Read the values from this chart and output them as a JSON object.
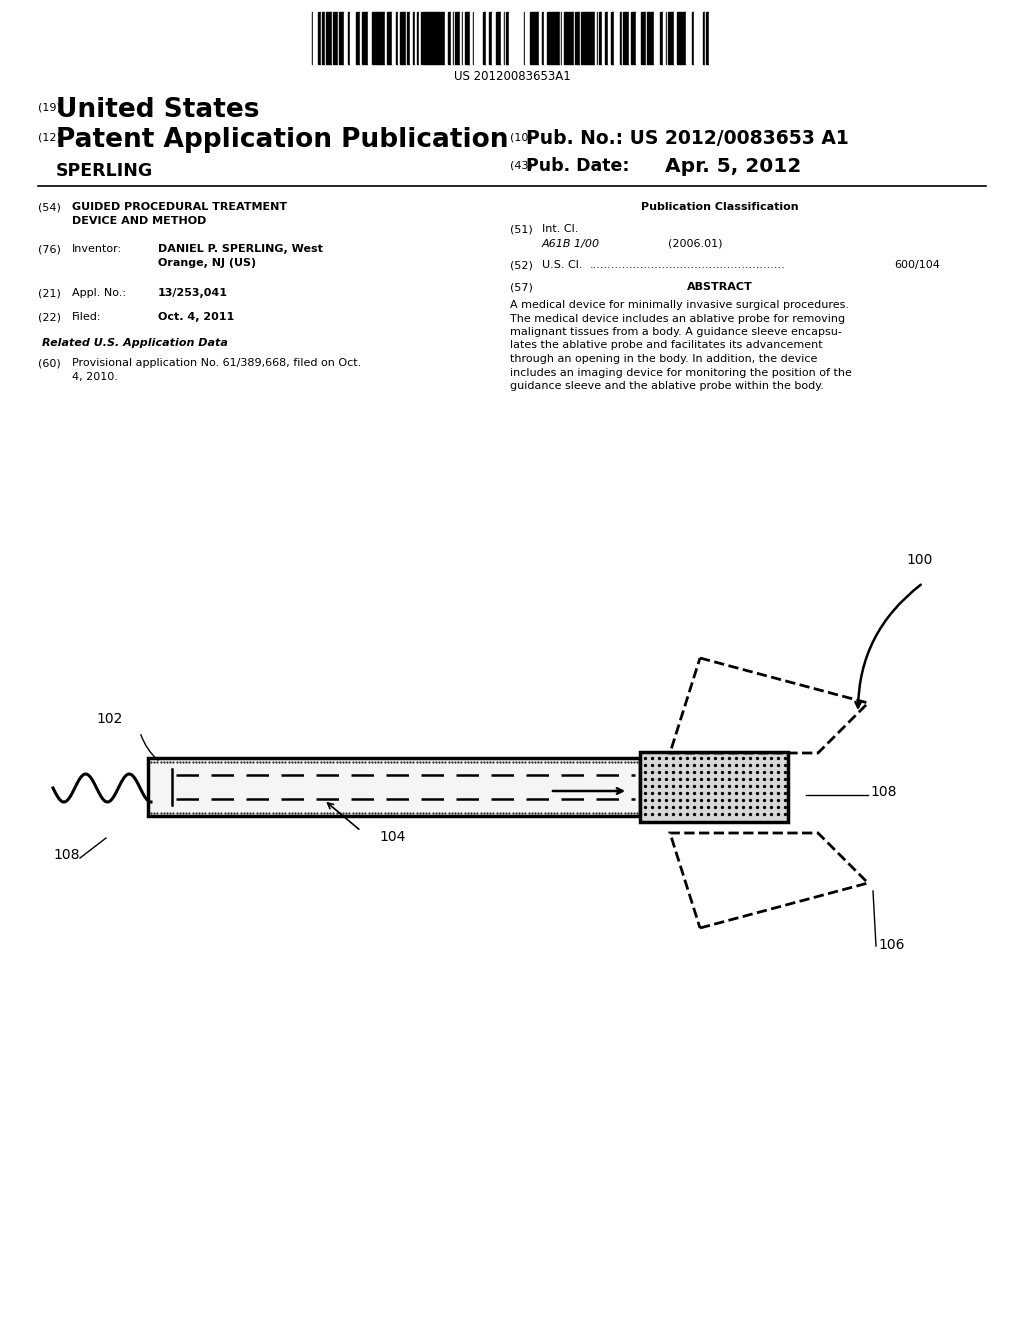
{
  "title": "GUIDED PROCEDURAL TREATMENT DEVICE AND METHOD",
  "barcode_text": "US 20120083653A1",
  "country": "United States",
  "pub_type": "Patent Application Publication",
  "pub_label19": "(19)",
  "pub_label12": "(12)",
  "pub_label10": "(10)",
  "pub_label43": "(43)",
  "pub_no_label": "Pub. No.:",
  "pub_no": "US 2012/0083653 A1",
  "pub_date_label": "Pub. Date:",
  "pub_date": "Apr. 5, 2012",
  "applicant": "SPERLING",
  "section54_label": "(54)",
  "section76_label": "(76)",
  "section76_field": "Inventor:",
  "section21_label": "(21)",
  "section21_field": "Appl. No.:",
  "section21_value": "13/253,041",
  "section22_label": "(22)",
  "section22_field": "Filed:",
  "section22_value": "Oct. 4, 2011",
  "related_header": "Related U.S. Application Data",
  "section60_label": "(60)",
  "section60_line1": "Provisional application No. 61/389,668, filed on Oct.",
  "section60_line2": "4, 2010.",
  "pub_class_header": "Publication Classification",
  "section51_label": "(51)",
  "section51_field": "Int. Cl.",
  "section51_class": "A61B 1/00",
  "section51_year": "(2006.01)",
  "section52_label": "(52)",
  "section52_field": "U.S. Cl.",
  "section52_dots": "......................................................",
  "section52_value": "600/104",
  "section57_label": "(57)",
  "section57_header": "ABSTRACT",
  "abstract_line1": "A medical device for minimally invasive surgical procedures.",
  "abstract_line2": "The medical device includes an ablative probe for removing",
  "abstract_line3": "malignant tissues from a body. A guidance sleeve encapsu-",
  "abstract_line4": "lates the ablative probe and facilitates its advancement",
  "abstract_line5": "through an opening in the body. In addition, the device",
  "abstract_line6": "includes an imaging device for monitoring the position of the",
  "abstract_line7": "guidance sleeve and the ablative probe within the body.",
  "bg_color": "#ffffff",
  "text_color": "#000000",
  "diagram_label_100": "100",
  "diagram_label_102": "102",
  "diagram_label_104": "104",
  "diagram_label_106": "106",
  "diagram_label_108a": "108",
  "diagram_label_108b": "108"
}
